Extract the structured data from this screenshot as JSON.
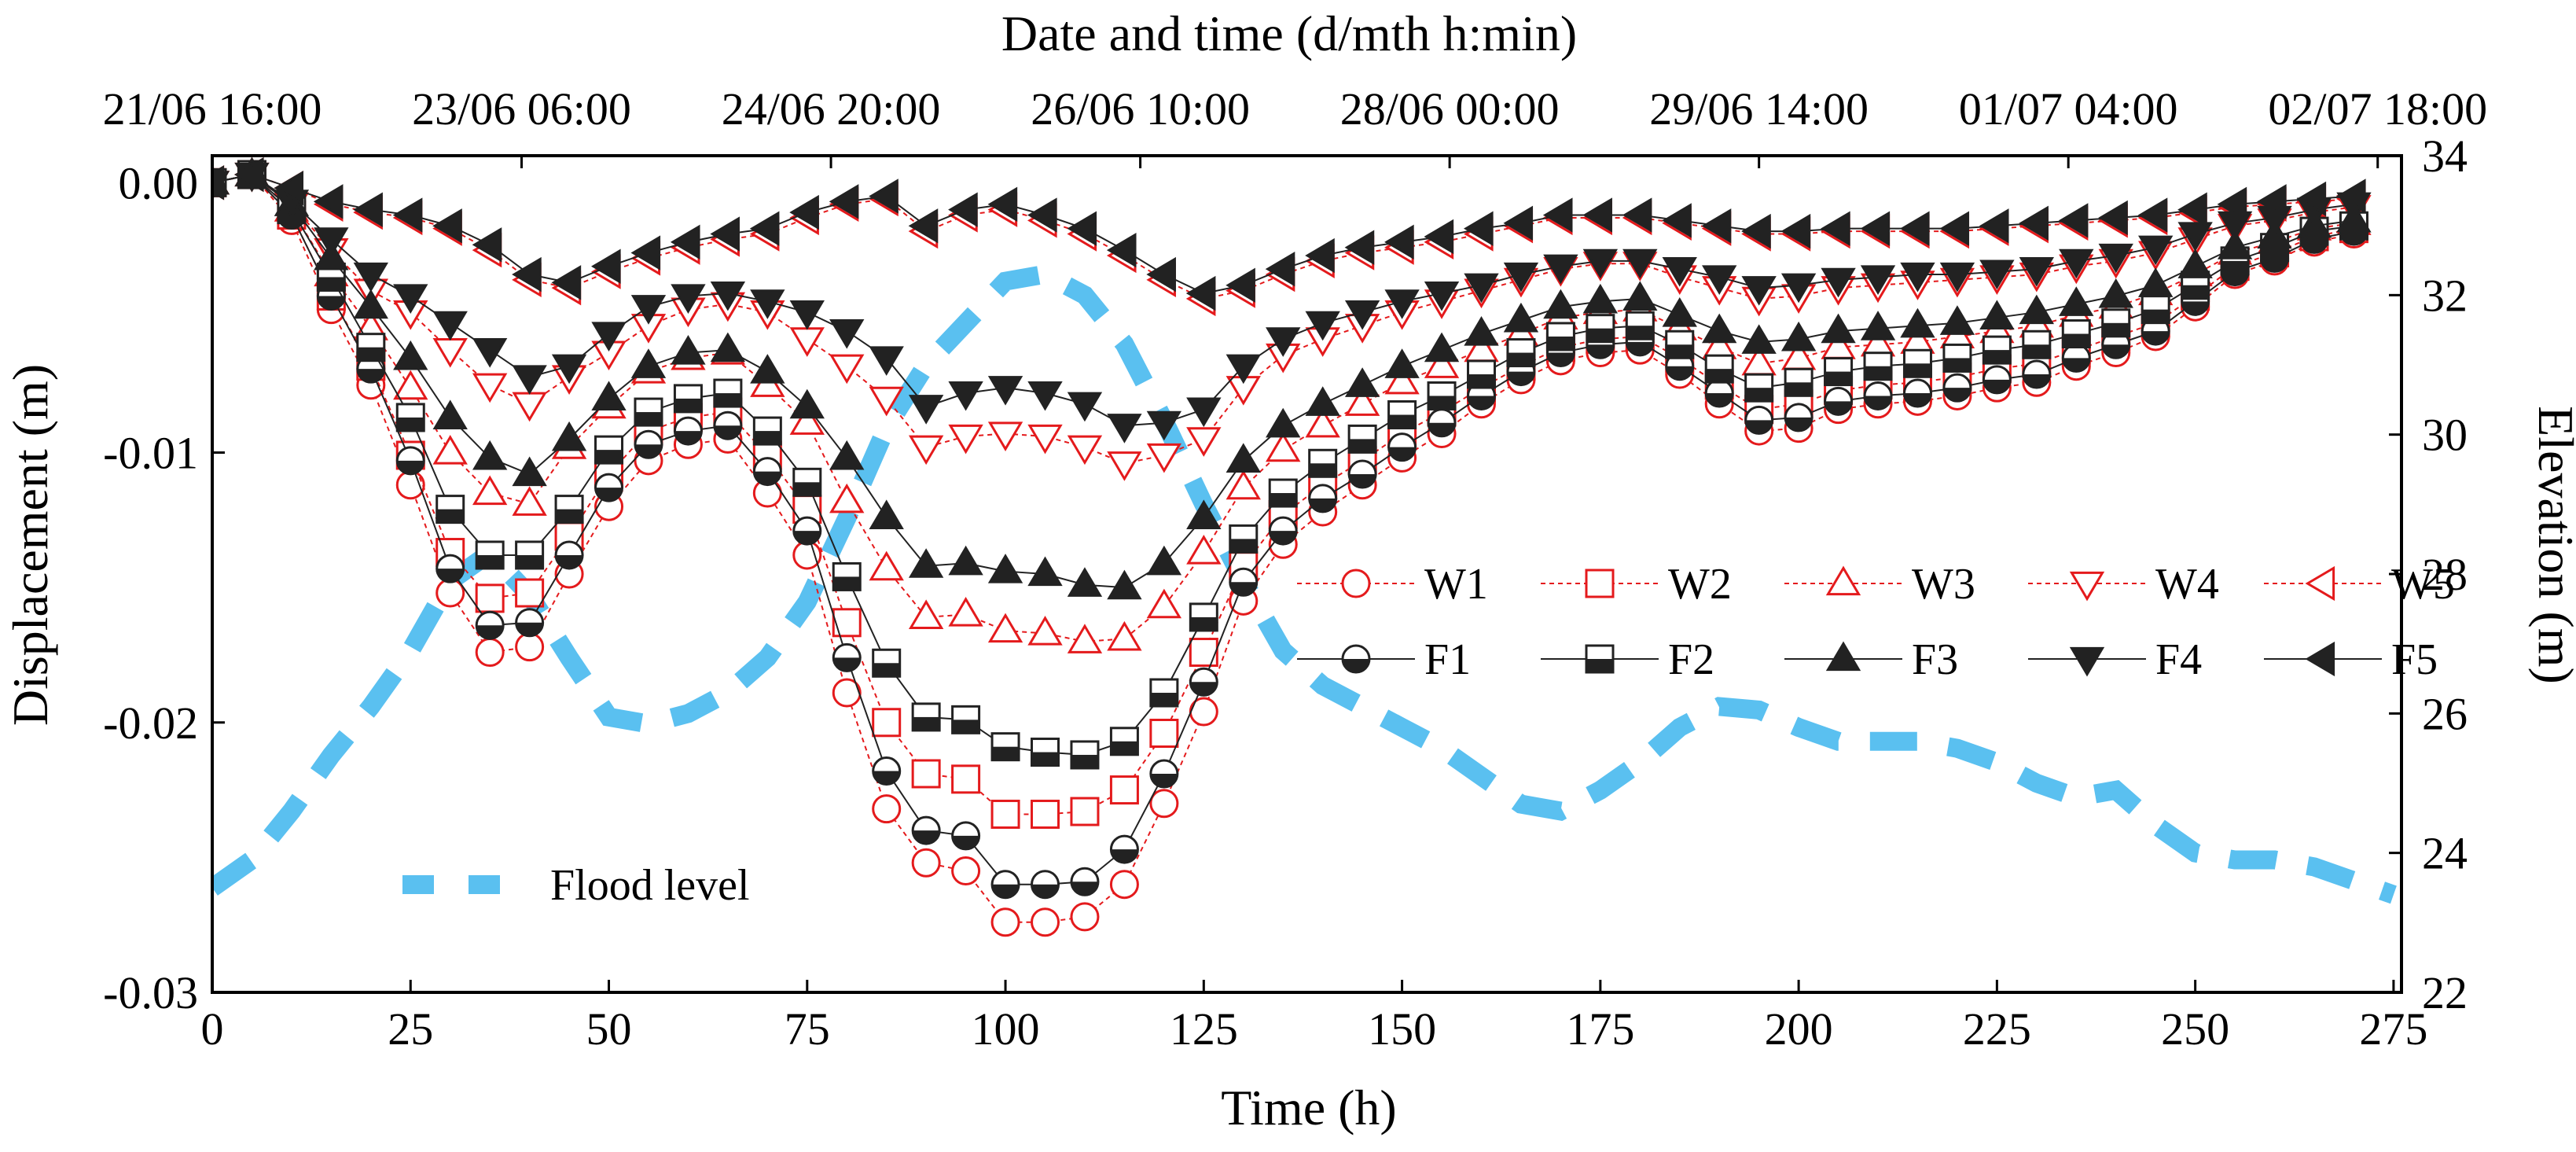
{
  "chart_data": {
    "type": "line",
    "xlabel": "Time (h)",
    "ylabel": "Displacement (m)",
    "y2label": "Elevation (m)",
    "top_axis_title": "Date and time (d/mth h:min)",
    "xlim": [
      0,
      276
    ],
    "ylim": [
      -0.03,
      0.001
    ],
    "y2lim": [
      22,
      34
    ],
    "x_ticks": [
      0,
      25,
      50,
      75,
      100,
      125,
      150,
      175,
      200,
      225,
      250,
      275
    ],
    "x_tick_labels": [
      "0",
      "25",
      "50",
      "75",
      "100",
      "125",
      "150",
      "175",
      "200",
      "225",
      "250",
      "275"
    ],
    "y_ticks": [
      0,
      -0.01,
      -0.02,
      -0.03
    ],
    "y_tick_labels": [
      "0.00",
      "-0.01",
      "-0.02",
      "-0.03"
    ],
    "y2_ticks": [
      22,
      24,
      26,
      28,
      30,
      32,
      34
    ],
    "y2_tick_labels": [
      "22",
      "24",
      "26",
      "28",
      "30",
      "32",
      "34"
    ],
    "top_ticks": [
      0,
      39,
      78,
      117,
      156,
      195,
      234,
      273
    ],
    "top_tick_labels": [
      "21/06 16:00",
      "23/06 06:00",
      "24/06 20:00",
      "26/06 10:00",
      "28/06 00:00",
      "29/06 14:00",
      "01/07 04:00",
      "02/07 18:00"
    ],
    "x": [
      0,
      5,
      10,
      15,
      20,
      25,
      30,
      35,
      40,
      45,
      50,
      55,
      60,
      65,
      70,
      75,
      80,
      85,
      90,
      95,
      100,
      105,
      110,
      115,
      120,
      125,
      130,
      135,
      140,
      145,
      150,
      155,
      160,
      165,
      170,
      175,
      180,
      185,
      190,
      195,
      200,
      205,
      210,
      215,
      220,
      225,
      230,
      235,
      240,
      245,
      250,
      255,
      260,
      265,
      270
    ],
    "series": [
      {
        "name": "W1",
        "group": "W",
        "marker": "circle",
        "values": [
          0,
          0.0003,
          -0.0014,
          -0.0047,
          -0.0075,
          -0.0112,
          -0.0152,
          -0.0174,
          -0.0172,
          -0.0145,
          -0.012,
          -0.0103,
          -0.0097,
          -0.0095,
          -0.0115,
          -0.0138,
          -0.0189,
          -0.0232,
          -0.0252,
          -0.0255,
          -0.0274,
          -0.0274,
          -0.0272,
          -0.026,
          -0.023,
          -0.0196,
          -0.0155,
          -0.0134,
          -0.0122,
          -0.0112,
          -0.0102,
          -0.0093,
          -0.0082,
          -0.0073,
          -0.0066,
          -0.0063,
          -0.0062,
          -0.0071,
          -0.0082,
          -0.0092,
          -0.0091,
          -0.0084,
          -0.0082,
          -0.0081,
          -0.0079,
          -0.0076,
          -0.0074,
          -0.0068,
          -0.0063,
          -0.0057,
          -0.0046,
          -0.0034,
          -0.0029,
          -0.0022,
          -0.0019
        ]
      },
      {
        "name": "W2",
        "group": "W",
        "marker": "square",
        "values": [
          0,
          0.0003,
          -0.0012,
          -0.0042,
          -0.0068,
          -0.0101,
          -0.0137,
          -0.0154,
          -0.0152,
          -0.0131,
          -0.0108,
          -0.0092,
          -0.0087,
          -0.0085,
          -0.0101,
          -0.0121,
          -0.0163,
          -0.02,
          -0.0219,
          -0.0221,
          -0.0234,
          -0.0234,
          -0.0233,
          -0.0225,
          -0.0204,
          -0.0174,
          -0.0142,
          -0.0123,
          -0.0112,
          -0.0103,
          -0.0093,
          -0.0085,
          -0.0076,
          -0.0068,
          -0.0061,
          -0.0058,
          -0.0057,
          -0.0065,
          -0.0075,
          -0.0084,
          -0.0082,
          -0.0077,
          -0.0075,
          -0.0074,
          -0.0072,
          -0.0069,
          -0.0067,
          -0.0062,
          -0.0057,
          -0.0052,
          -0.0042,
          -0.0031,
          -0.0026,
          -0.002,
          -0.0017
        ]
      },
      {
        "name": "W3",
        "group": "W",
        "marker": "triangle-up",
        "values": [
          0,
          0.0003,
          -0.001,
          -0.0034,
          -0.0054,
          -0.0076,
          -0.01,
          -0.0115,
          -0.0119,
          -0.0098,
          -0.0083,
          -0.007,
          -0.0065,
          -0.0063,
          -0.0075,
          -0.0089,
          -0.0118,
          -0.0143,
          -0.0161,
          -0.016,
          -0.0166,
          -0.0167,
          -0.017,
          -0.0169,
          -0.0157,
          -0.0137,
          -0.0113,
          -0.0099,
          -0.009,
          -0.0082,
          -0.0074,
          -0.0068,
          -0.0062,
          -0.0056,
          -0.005,
          -0.0048,
          -0.0047,
          -0.0054,
          -0.0061,
          -0.0067,
          -0.0065,
          -0.0061,
          -0.006,
          -0.0059,
          -0.0057,
          -0.0055,
          -0.0053,
          -0.0049,
          -0.0046,
          -0.0041,
          -0.0034,
          -0.0026,
          -0.0022,
          -0.0017,
          -0.0015
        ]
      },
      {
        "name": "W4",
        "group": "W",
        "marker": "triangle-down",
        "values": [
          0,
          0.0003,
          -0.0008,
          -0.0025,
          -0.004,
          -0.0048,
          -0.0062,
          -0.0075,
          -0.0082,
          -0.0072,
          -0.0063,
          -0.0053,
          -0.0047,
          -0.0045,
          -0.0048,
          -0.0058,
          -0.0068,
          -0.008,
          -0.0098,
          -0.0094,
          -0.0093,
          -0.0094,
          -0.0098,
          -0.0104,
          -0.0101,
          -0.0095,
          -0.0076,
          -0.0064,
          -0.0058,
          -0.0053,
          -0.0048,
          -0.0044,
          -0.004,
          -0.0036,
          -0.0032,
          -0.003,
          -0.003,
          -0.0035,
          -0.0039,
          -0.0043,
          -0.0042,
          -0.0039,
          -0.0038,
          -0.0037,
          -0.0036,
          -0.0035,
          -0.0034,
          -0.0031,
          -0.0029,
          -0.0026,
          -0.0021,
          -0.0016,
          -0.0014,
          -0.0011,
          -0.0009
        ]
      },
      {
        "name": "W5",
        "group": "W",
        "marker": "triangle-left",
        "values": [
          0,
          0.0003,
          -0.0002,
          -0.0008,
          -0.0011,
          -0.0013,
          -0.0017,
          -0.0025,
          -0.0036,
          -0.0039,
          -0.0033,
          -0.0028,
          -0.0024,
          -0.0021,
          -0.0019,
          -0.0013,
          -0.0008,
          -0.0006,
          -0.0018,
          -0.0012,
          -0.001,
          -0.0014,
          -0.0019,
          -0.0027,
          -0.0036,
          -0.0043,
          -0.004,
          -0.0034,
          -0.0029,
          -0.0026,
          -0.0024,
          -0.0022,
          -0.0019,
          -0.0016,
          -0.0013,
          -0.0013,
          -0.0013,
          -0.0015,
          -0.0017,
          -0.0019,
          -0.0019,
          -0.0018,
          -0.0018,
          -0.0018,
          -0.0018,
          -0.0017,
          -0.0016,
          -0.0015,
          -0.0014,
          -0.0013,
          -0.0011,
          -0.0009,
          -0.0008,
          -0.0007,
          -0.0006
        ]
      },
      {
        "name": "F1",
        "group": "F",
        "marker": "circle",
        "values": [
          0,
          0.0003,
          -0.0012,
          -0.0042,
          -0.0069,
          -0.0103,
          -0.0143,
          -0.0164,
          -0.0163,
          -0.0138,
          -0.0113,
          -0.0097,
          -0.0092,
          -0.009,
          -0.0107,
          -0.0129,
          -0.0176,
          -0.0218,
          -0.024,
          -0.0242,
          -0.026,
          -0.026,
          -0.0259,
          -0.0247,
          -0.0219,
          -0.0185,
          -0.0148,
          -0.0129,
          -0.0117,
          -0.0108,
          -0.0098,
          -0.0089,
          -0.0079,
          -0.007,
          -0.0063,
          -0.006,
          -0.0059,
          -0.0068,
          -0.0078,
          -0.0088,
          -0.0087,
          -0.0081,
          -0.0079,
          -0.0078,
          -0.0076,
          -0.0073,
          -0.0071,
          -0.0065,
          -0.006,
          -0.0055,
          -0.0044,
          -0.0033,
          -0.0028,
          -0.0021,
          -0.0018
        ]
      },
      {
        "name": "F2",
        "group": "F",
        "marker": "square",
        "values": [
          0,
          0.0003,
          -0.001,
          -0.0035,
          -0.0061,
          -0.0087,
          -0.0121,
          -0.0138,
          -0.0138,
          -0.0121,
          -0.0099,
          -0.0085,
          -0.008,
          -0.0078,
          -0.0092,
          -0.0111,
          -0.0146,
          -0.0178,
          -0.0198,
          -0.0199,
          -0.0209,
          -0.0211,
          -0.0212,
          -0.0207,
          -0.0189,
          -0.0161,
          -0.0132,
          -0.0115,
          -0.0104,
          -0.0095,
          -0.0086,
          -0.0079,
          -0.0071,
          -0.0063,
          -0.0057,
          -0.0054,
          -0.0053,
          -0.006,
          -0.0069,
          -0.0076,
          -0.0074,
          -0.007,
          -0.0068,
          -0.0067,
          -0.0065,
          -0.0062,
          -0.006,
          -0.0056,
          -0.0052,
          -0.0047,
          -0.0038,
          -0.0029,
          -0.0024,
          -0.0018,
          -0.0016
        ]
      },
      {
        "name": "F3",
        "group": "F",
        "marker": "triangle-up",
        "values": [
          0,
          0.0003,
          -0.0008,
          -0.0028,
          -0.0046,
          -0.0065,
          -0.0087,
          -0.0102,
          -0.0108,
          -0.0095,
          -0.008,
          -0.0068,
          -0.0063,
          -0.0062,
          -0.007,
          -0.0083,
          -0.0102,
          -0.0124,
          -0.0142,
          -0.0141,
          -0.0144,
          -0.0145,
          -0.0149,
          -0.015,
          -0.0141,
          -0.0124,
          -0.0103,
          -0.009,
          -0.0082,
          -0.0075,
          -0.0068,
          -0.0062,
          -0.0056,
          -0.0051,
          -0.0046,
          -0.0044,
          -0.0043,
          -0.0049,
          -0.0055,
          -0.0059,
          -0.0058,
          -0.0055,
          -0.0054,
          -0.0053,
          -0.0052,
          -0.005,
          -0.0048,
          -0.0045,
          -0.0042,
          -0.0038,
          -0.0031,
          -0.0024,
          -0.002,
          -0.0016,
          -0.0014
        ]
      },
      {
        "name": "F4",
        "group": "F",
        "marker": "triangle-down",
        "values": [
          0,
          0.0003,
          -0.0007,
          -0.0021,
          -0.0034,
          -0.0042,
          -0.0052,
          -0.0062,
          -0.0072,
          -0.0068,
          -0.0056,
          -0.0046,
          -0.0042,
          -0.0041,
          -0.0044,
          -0.0048,
          -0.0055,
          -0.0065,
          -0.0083,
          -0.0078,
          -0.0076,
          -0.0078,
          -0.0082,
          -0.009,
          -0.0089,
          -0.0084,
          -0.0068,
          -0.0058,
          -0.0052,
          -0.0048,
          -0.0044,
          -0.0041,
          -0.0038,
          -0.0034,
          -0.0031,
          -0.0029,
          -0.0029,
          -0.0032,
          -0.0035,
          -0.0039,
          -0.0038,
          -0.0036,
          -0.0035,
          -0.0034,
          -0.0034,
          -0.0033,
          -0.0032,
          -0.0029,
          -0.0027,
          -0.0024,
          -0.0019,
          -0.0015,
          -0.0013,
          -0.001,
          -0.0008
        ]
      },
      {
        "name": "F5",
        "group": "F",
        "marker": "triangle-left",
        "values": [
          0,
          0.0003,
          -0.0002,
          -0.0007,
          -0.001,
          -0.0012,
          -0.0016,
          -0.0023,
          -0.0034,
          -0.0037,
          -0.0031,
          -0.0026,
          -0.0022,
          -0.0019,
          -0.0017,
          -0.0011,
          -0.0007,
          -0.0005,
          -0.0016,
          -0.001,
          -0.0008,
          -0.0012,
          -0.0017,
          -0.0025,
          -0.0034,
          -0.0041,
          -0.0038,
          -0.0032,
          -0.0027,
          -0.0024,
          -0.0022,
          -0.002,
          -0.0017,
          -0.0015,
          -0.0012,
          -0.0012,
          -0.0012,
          -0.0014,
          -0.0016,
          -0.0018,
          -0.0018,
          -0.0017,
          -0.0017,
          -0.0017,
          -0.0017,
          -0.0016,
          -0.0015,
          -0.0014,
          -0.0013,
          -0.0012,
          -0.001,
          -0.0008,
          -0.0007,
          -0.0006,
          -0.0005
        ]
      }
    ],
    "flood_level": {
      "name": "Flood level",
      "axis": "right",
      "x": [
        0,
        5,
        10,
        15,
        20,
        25,
        30,
        35,
        40,
        45,
        50,
        55,
        60,
        65,
        70,
        75,
        80,
        85,
        90,
        95,
        100,
        105,
        110,
        115,
        120,
        125,
        130,
        135,
        140,
        145,
        150,
        155,
        160,
        165,
        170,
        175,
        180,
        185,
        190,
        195,
        200,
        205,
        210,
        215,
        220,
        225,
        230,
        235,
        240,
        245,
        250,
        255,
        260,
        265,
        270,
        275
      ],
      "values": [
        23.5,
        23.9,
        24.6,
        25.4,
        26.1,
        26.9,
        27.9,
        28.3,
        27.7,
        26.8,
        25.95,
        25.85,
        26.0,
        26.3,
        26.8,
        27.6,
        28.8,
        30.1,
        31.0,
        31.6,
        32.2,
        32.3,
        32.0,
        31.3,
        30.2,
        29.0,
        27.9,
        26.9,
        26.4,
        26.1,
        25.8,
        25.5,
        25.1,
        24.7,
        24.6,
        24.9,
        25.3,
        25.8,
        26.1,
        26.05,
        25.8,
        25.6,
        25.6,
        25.6,
        25.5,
        25.3,
        25.0,
        24.8,
        24.9,
        24.4,
        24.0,
        23.9,
        23.9,
        23.8,
        23.6,
        23.4
      ]
    },
    "colors": {
      "W": "#e41a1c",
      "F": "#222222",
      "flood": "#5ac0f0"
    },
    "legend": {
      "row1": [
        "W1",
        "W2",
        "W3",
        "W4",
        "W5"
      ],
      "row2": [
        "F1",
        "F2",
        "F3",
        "F4",
        "F5"
      ],
      "flood_label": "Flood level"
    }
  }
}
